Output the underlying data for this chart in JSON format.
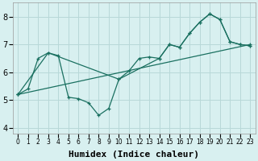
{
  "background_color": "#d8f0f0",
  "grid_color": "#b8d8d8",
  "line_color": "#1a7060",
  "xlabel": "Humidex (Indice chaleur)",
  "xlabel_fontsize": 8,
  "xlim": [
    -0.5,
    23.5
  ],
  "ylim": [
    3.8,
    8.5
  ],
  "yticks": [
    4,
    5,
    6,
    7,
    8
  ],
  "xticks": [
    0,
    1,
    2,
    3,
    4,
    5,
    6,
    7,
    8,
    9,
    10,
    11,
    12,
    13,
    14,
    15,
    16,
    17,
    18,
    19,
    20,
    21,
    22,
    23
  ],
  "series": [
    {
      "x": [
        0,
        1,
        2,
        3,
        4,
        5,
        6,
        7,
        8,
        9,
        10,
        11,
        12,
        13,
        14,
        15,
        16,
        17,
        18,
        19,
        20,
        21,
        22,
        23
      ],
      "y": [
        5.2,
        5.4,
        6.5,
        6.7,
        6.6,
        5.1,
        5.05,
        4.9,
        4.45,
        4.7,
        5.75,
        6.05,
        6.5,
        6.55,
        6.5,
        7.0,
        6.9,
        7.4,
        7.8,
        8.1,
        7.9,
        7.1,
        7.0,
        6.95
      ]
    },
    {
      "x": [
        0,
        3,
        10,
        14,
        15,
        16,
        17,
        18,
        19,
        20,
        21,
        22,
        23
      ],
      "y": [
        5.2,
        6.7,
        5.75,
        6.5,
        7.0,
        6.9,
        7.4,
        7.8,
        8.1,
        7.9,
        7.1,
        7.0,
        6.95
      ]
    },
    {
      "x": [
        0,
        23
      ],
      "y": [
        5.2,
        7.0
      ]
    }
  ]
}
